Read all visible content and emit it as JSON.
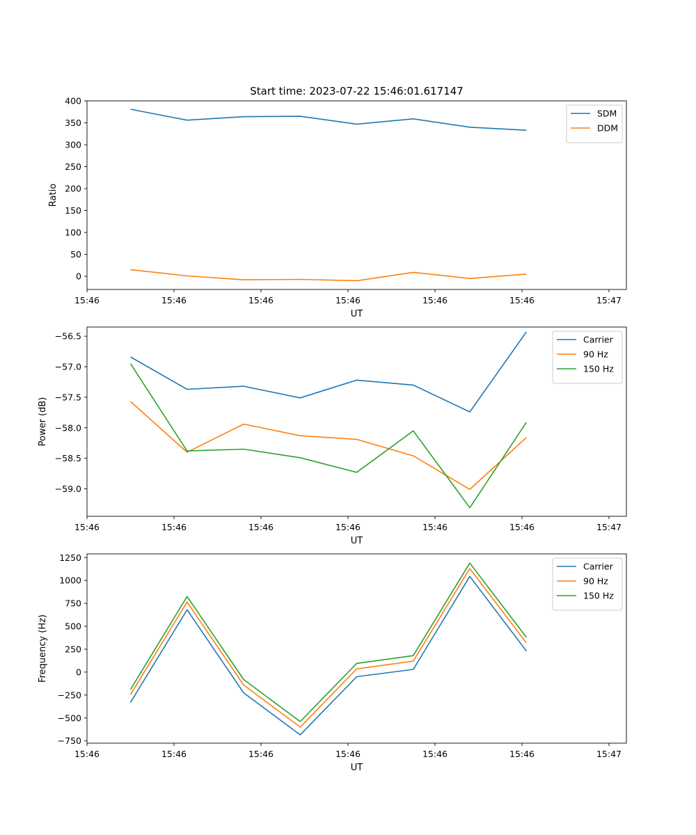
{
  "figure_title": "Start time: 2023-07-22 15:46:01.617147",
  "chart_data": [
    {
      "type": "line",
      "xlabel": "UT",
      "ylabel": "Ratio",
      "xlim": [
        0,
        12.4
      ],
      "ylim": [
        -30,
        400
      ],
      "x_ticks": [
        {
          "value": 0,
          "label": "15:46"
        },
        {
          "value": 2,
          "label": "15:46"
        },
        {
          "value": 4,
          "label": "15:46"
        },
        {
          "value": 6,
          "label": "15:46"
        },
        {
          "value": 8,
          "label": "15:46"
        },
        {
          "value": 10,
          "label": "15:46"
        },
        {
          "value": 12,
          "label": "15:47"
        }
      ],
      "y_ticks": [
        0,
        50,
        100,
        150,
        200,
        250,
        300,
        350,
        400
      ],
      "x": [
        1,
        2.3,
        3.6,
        4.9,
        6.2,
        7.5,
        8.8,
        10.1
      ],
      "legend": "top-right",
      "series": [
        {
          "name": "SDM",
          "color": "#1f77b4",
          "values": [
            381,
            356,
            364,
            365,
            347,
            359,
            340,
            333
          ]
        },
        {
          "name": "DDM",
          "color": "#ff7f0e",
          "values": [
            15,
            1,
            -8,
            -7,
            -10,
            9,
            -5,
            5
          ]
        }
      ]
    },
    {
      "type": "line",
      "xlabel": "UT",
      "ylabel": "Power (dB)",
      "xlim": [
        0,
        12.4
      ],
      "ylim": [
        -59.45,
        -56.35
      ],
      "x_ticks": [
        {
          "value": 0,
          "label": "15:46"
        },
        {
          "value": 2,
          "label": "15:46"
        },
        {
          "value": 4,
          "label": "15:46"
        },
        {
          "value": 6,
          "label": "15:46"
        },
        {
          "value": 8,
          "label": "15:46"
        },
        {
          "value": 10,
          "label": "15:46"
        },
        {
          "value": 12,
          "label": "15:47"
        }
      ],
      "y_ticks": [
        -59.0,
        -58.5,
        -58.0,
        -57.5,
        -57.0,
        -56.5
      ],
      "y_tick_labels": [
        "−59.0",
        "−58.5",
        "−58.0",
        "−57.5",
        "−57.0",
        "−56.5"
      ],
      "x": [
        1,
        2.3,
        3.6,
        4.9,
        6.2,
        7.5,
        8.8,
        10.1
      ],
      "legend": "top-right",
      "series": [
        {
          "name": "Carrier",
          "color": "#1f77b4",
          "values": [
            -56.84,
            -57.37,
            -57.32,
            -57.51,
            -57.22,
            -57.3,
            -57.74,
            -56.43
          ]
        },
        {
          "name": "90 Hz",
          "color": "#ff7f0e",
          "values": [
            -57.57,
            -58.4,
            -57.94,
            -58.13,
            -58.19,
            -58.46,
            -59.01,
            -58.16
          ]
        },
        {
          "name": "150 Hz",
          "color": "#2ca02c",
          "values": [
            -56.95,
            -58.38,
            -58.35,
            -58.49,
            -58.73,
            -58.05,
            -59.31,
            -57.91
          ]
        }
      ]
    },
    {
      "type": "line",
      "xlabel": "UT",
      "ylabel": "Frequency (Hz)",
      "xlim": [
        0,
        12.4
      ],
      "ylim": [
        -775,
        1290
      ],
      "x_ticks": [
        {
          "value": 0,
          "label": "15:46"
        },
        {
          "value": 2,
          "label": "15:46"
        },
        {
          "value": 4,
          "label": "15:46"
        },
        {
          "value": 6,
          "label": "15:46"
        },
        {
          "value": 8,
          "label": "15:46"
        },
        {
          "value": 10,
          "label": "15:46"
        },
        {
          "value": 12,
          "label": "15:47"
        }
      ],
      "y_ticks": [
        -750,
        -500,
        -250,
        0,
        250,
        500,
        750,
        1000,
        1250
      ],
      "y_tick_labels": [
        "−750",
        "−500",
        "−250",
        "0",
        "250",
        "500",
        "750",
        "1000",
        "1250"
      ],
      "x": [
        1,
        2.3,
        3.6,
        4.9,
        6.2,
        7.5,
        8.8,
        10.1
      ],
      "legend": "top-right",
      "series": [
        {
          "name": "Carrier",
          "color": "#1f77b4",
          "values": [
            -330,
            680,
            -225,
            -685,
            -50,
            30,
            1045,
            230
          ]
        },
        {
          "name": "90 Hz",
          "color": "#ff7f0e",
          "values": [
            -245,
            765,
            -140,
            -600,
            35,
            120,
            1130,
            320
          ]
        },
        {
          "name": "150 Hz",
          "color": "#2ca02c",
          "values": [
            -190,
            825,
            -80,
            -540,
            95,
            180,
            1190,
            380
          ]
        }
      ]
    }
  ]
}
